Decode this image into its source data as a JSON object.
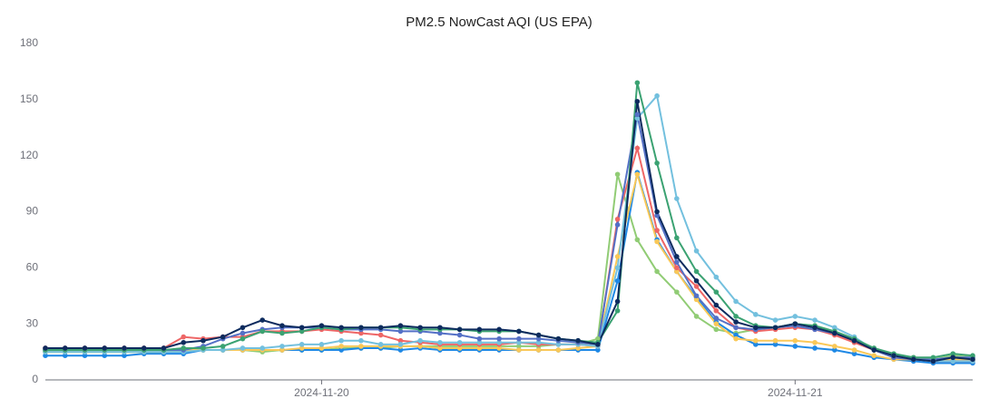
{
  "chart_data": {
    "type": "line",
    "title": "PM2.5 NowCast AQI (US EPA)",
    "categories": [
      null,
      null,
      null,
      null,
      null,
      null,
      null,
      null,
      null,
      null,
      null,
      null,
      null,
      null,
      "2024-11-20",
      null,
      null,
      null,
      null,
      null,
      null,
      null,
      null,
      null,
      null,
      null,
      null,
      null,
      null,
      null,
      null,
      null,
      null,
      null,
      null,
      null,
      null,
      null,
      "2024-11-21",
      null,
      null,
      null,
      null,
      null,
      null,
      null,
      null,
      null
    ],
    "ylim": [
      0,
      180
    ],
    "yticks": [
      0,
      30,
      60,
      90,
      120,
      150,
      180
    ],
    "grid": false,
    "series": [
      {
        "color": "#91cc75",
        "values": [
          15,
          15,
          15,
          15,
          15,
          15,
          15,
          16,
          16,
          16,
          16,
          15,
          16,
          16,
          16,
          17,
          17,
          17,
          18,
          18,
          18,
          18,
          18,
          18,
          18,
          18,
          19,
          19,
          22,
          110,
          75,
          58,
          47,
          34,
          27,
          25,
          27,
          28,
          30,
          29,
          26,
          22,
          16,
          13,
          12,
          11,
          13,
          12
        ]
      },
      {
        "color": "#1e88e5",
        "values": [
          13,
          13,
          13,
          13,
          13,
          14,
          14,
          14,
          16,
          16,
          16,
          16,
          16,
          16,
          16,
          16,
          17,
          17,
          16,
          17,
          16,
          16,
          16,
          16,
          16,
          16,
          16,
          16,
          16,
          53,
          111,
          75,
          58,
          44,
          31,
          24,
          19,
          19,
          18,
          17,
          16,
          14,
          12,
          11,
          10,
          9,
          9,
          9
        ]
      },
      {
        "color": "#fac858",
        "values": [
          15,
          15,
          15,
          15,
          15,
          15,
          15,
          16,
          16,
          16,
          16,
          16,
          16,
          17,
          17,
          18,
          18,
          18,
          18,
          18,
          17,
          17,
          17,
          17,
          16,
          16,
          16,
          17,
          18,
          66,
          110,
          74,
          58,
          43,
          30,
          22,
          21,
          21,
          21,
          20,
          18,
          16,
          13,
          11,
          11,
          11,
          11,
          11
        ]
      },
      {
        "color": "#ee6666",
        "values": [
          17,
          17,
          17,
          17,
          17,
          17,
          17,
          23,
          22,
          23,
          23,
          26,
          26,
          26,
          27,
          26,
          25,
          24,
          21,
          20,
          19,
          19,
          19,
          19,
          20,
          19,
          19,
          19,
          18,
          86,
          124,
          80,
          60,
          50,
          37,
          28,
          26,
          27,
          28,
          27,
          24,
          20,
          16,
          12,
          11,
          10,
          10,
          10
        ]
      },
      {
        "color": "#73c0de",
        "values": [
          15,
          15,
          15,
          15,
          15,
          15,
          15,
          15,
          16,
          16,
          17,
          17,
          18,
          19,
          19,
          21,
          21,
          19,
          19,
          21,
          20,
          20,
          20,
          20,
          20,
          20,
          19,
          19,
          18,
          60,
          140,
          152,
          97,
          69,
          55,
          42,
          35,
          32,
          34,
          32,
          28,
          23,
          16,
          13,
          11,
          10,
          10,
          10
        ]
      },
      {
        "color": "#5470c6",
        "values": [
          16,
          16,
          16,
          16,
          16,
          16,
          16,
          16,
          18,
          22,
          25,
          27,
          28,
          28,
          28,
          27,
          27,
          27,
          26,
          26,
          25,
          24,
          22,
          22,
          22,
          22,
          21,
          20,
          19,
          83,
          142,
          88,
          63,
          45,
          33,
          28,
          27,
          28,
          29,
          27,
          25,
          21,
          16,
          12,
          11,
          11,
          12,
          12
        ]
      },
      {
        "color": "#3ba272",
        "values": [
          16,
          16,
          16,
          16,
          16,
          16,
          16,
          17,
          17,
          18,
          22,
          26,
          25,
          26,
          28,
          27,
          28,
          28,
          28,
          27,
          27,
          27,
          26,
          26,
          26,
          24,
          22,
          21,
          20,
          37,
          159,
          116,
          76,
          58,
          47,
          34,
          29,
          28,
          30,
          29,
          26,
          22,
          17,
          14,
          12,
          12,
          14,
          13
        ]
      },
      {
        "color": "#0d2b5e",
        "values": [
          17,
          17,
          17,
          17,
          17,
          17,
          17,
          20,
          21,
          23,
          28,
          32,
          29,
          28,
          29,
          28,
          28,
          28,
          29,
          28,
          28,
          27,
          27,
          27,
          26,
          24,
          22,
          21,
          19,
          42,
          149,
          90,
          66,
          53,
          40,
          31,
          28,
          28,
          30,
          28,
          25,
          21,
          16,
          13,
          11,
          10,
          12,
          11
        ]
      }
    ]
  }
}
